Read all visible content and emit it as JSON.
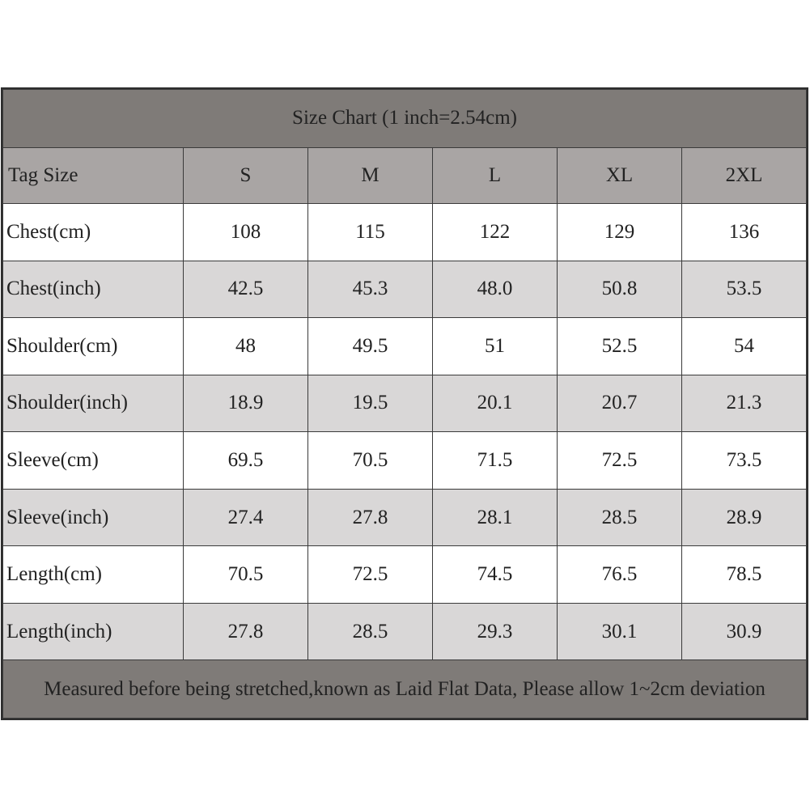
{
  "title": "Size Chart (1 inch=2.54cm)",
  "header": {
    "label": "Tag Size",
    "sizes": [
      "S",
      "M",
      "L",
      "XL",
      "2XL"
    ]
  },
  "rows": [
    {
      "label": "Chest(cm)",
      "values": [
        "108",
        "115",
        "122",
        "129",
        "136"
      ]
    },
    {
      "label": "Chest(inch)",
      "values": [
        "42.5",
        "45.3",
        "48.0",
        "50.8",
        "53.5"
      ]
    },
    {
      "label": "Shoulder(cm)",
      "values": [
        "48",
        "49.5",
        "51",
        "52.5",
        "54"
      ]
    },
    {
      "label": "Shoulder(inch)",
      "values": [
        "18.9",
        "19.5",
        "20.1",
        "20.7",
        "21.3"
      ]
    },
    {
      "label": "Sleeve(cm)",
      "values": [
        "69.5",
        "70.5",
        "71.5",
        "72.5",
        "73.5"
      ]
    },
    {
      "label": "Sleeve(inch)",
      "values": [
        "27.4",
        "27.8",
        "28.1",
        "28.5",
        "28.9"
      ]
    },
    {
      "label": "Length(cm)",
      "values": [
        "70.5",
        "72.5",
        "74.5",
        "76.5",
        "78.5"
      ]
    },
    {
      "label": "Length(inch)",
      "values": [
        "27.8",
        "28.5",
        "29.3",
        "30.1",
        "30.9"
      ]
    }
  ],
  "note": "Measured before being stretched,known as Laid Flat Data, Please allow 1~2cm deviation",
  "colors": {
    "title_bg": "#7f7b78",
    "header_bg": "#a9a5a4",
    "alt_row_bg": "#d9d7d7",
    "border": "#3a3a3a"
  }
}
